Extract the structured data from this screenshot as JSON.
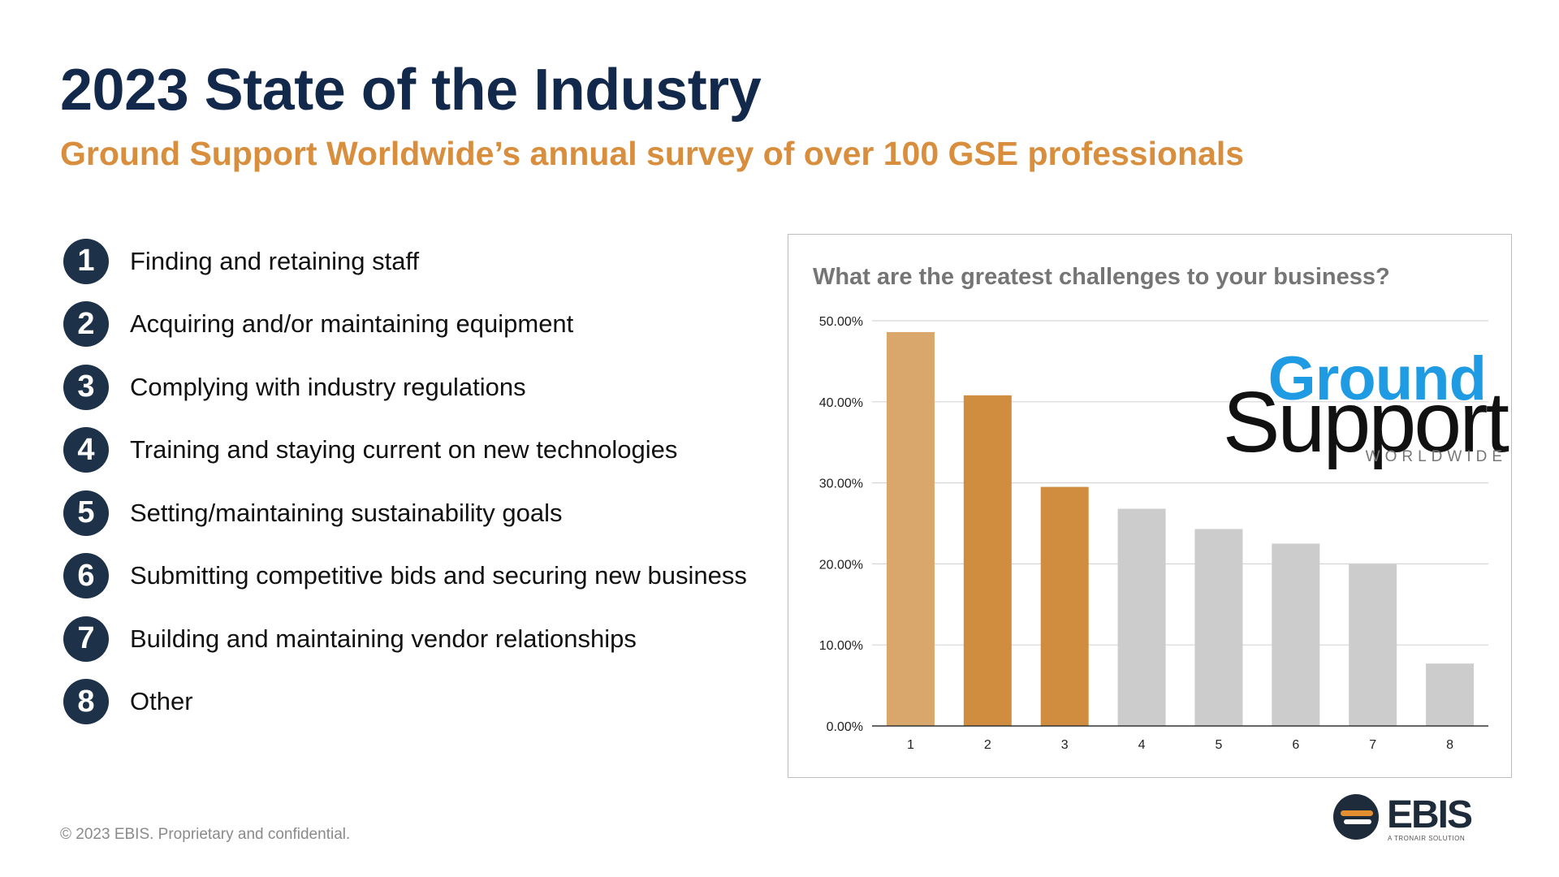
{
  "slide": {
    "title": "2023 State of the Industry",
    "subtitle": "Ground Support Worldwide’s annual survey of over 100 GSE professionals",
    "footer": "© 2023 EBIS. Proprietary and confidential."
  },
  "challenges": [
    {
      "num": "1",
      "label": "Finding and retaining staff"
    },
    {
      "num": "2",
      "label": "Acquiring and/or maintaining equipment"
    },
    {
      "num": "3",
      "label": "Complying with industry regulations"
    },
    {
      "num": "4",
      "label": "Training and staying current on new technologies"
    },
    {
      "num": "5",
      "label": "Setting/maintaining sustainability goals"
    },
    {
      "num": "6",
      "label": "Submitting competitive bids and securing new business"
    },
    {
      "num": "7",
      "label": "Building and maintaining vendor relationships"
    },
    {
      "num": "8",
      "label": "Other"
    }
  ],
  "logos": {
    "gsw_line1": "Ground",
    "gsw_line2": "Support",
    "gsw_line3": "WORLDWIDE",
    "ebis_name": "EBIS",
    "ebis_tagline": "A TRONAIR SOLUTION"
  },
  "colors": {
    "title": "#13294b",
    "subtitle": "#d88e3c",
    "badge": "#1d3149"
  },
  "chart_data": {
    "type": "bar",
    "title": "What are the greatest challenges to your business?",
    "xlabel": "",
    "ylabel": "",
    "categories": [
      "1",
      "2",
      "3",
      "4",
      "5",
      "6",
      "7",
      "8"
    ],
    "values": [
      48.6,
      40.8,
      29.5,
      26.8,
      24.3,
      22.5,
      20.0,
      7.7
    ],
    "ylim": [
      0,
      50
    ],
    "yticks": [
      "0.00%",
      "10.00%",
      "20.00%",
      "30.00%",
      "40.00%",
      "50.00%"
    ],
    "grid": true,
    "legend": "none",
    "bar_colors": [
      "#d9a76c",
      "#d08c3f",
      "#d08c3f",
      "#cccccc",
      "#cccccc",
      "#cccccc",
      "#cccccc",
      "#cccccc"
    ]
  }
}
